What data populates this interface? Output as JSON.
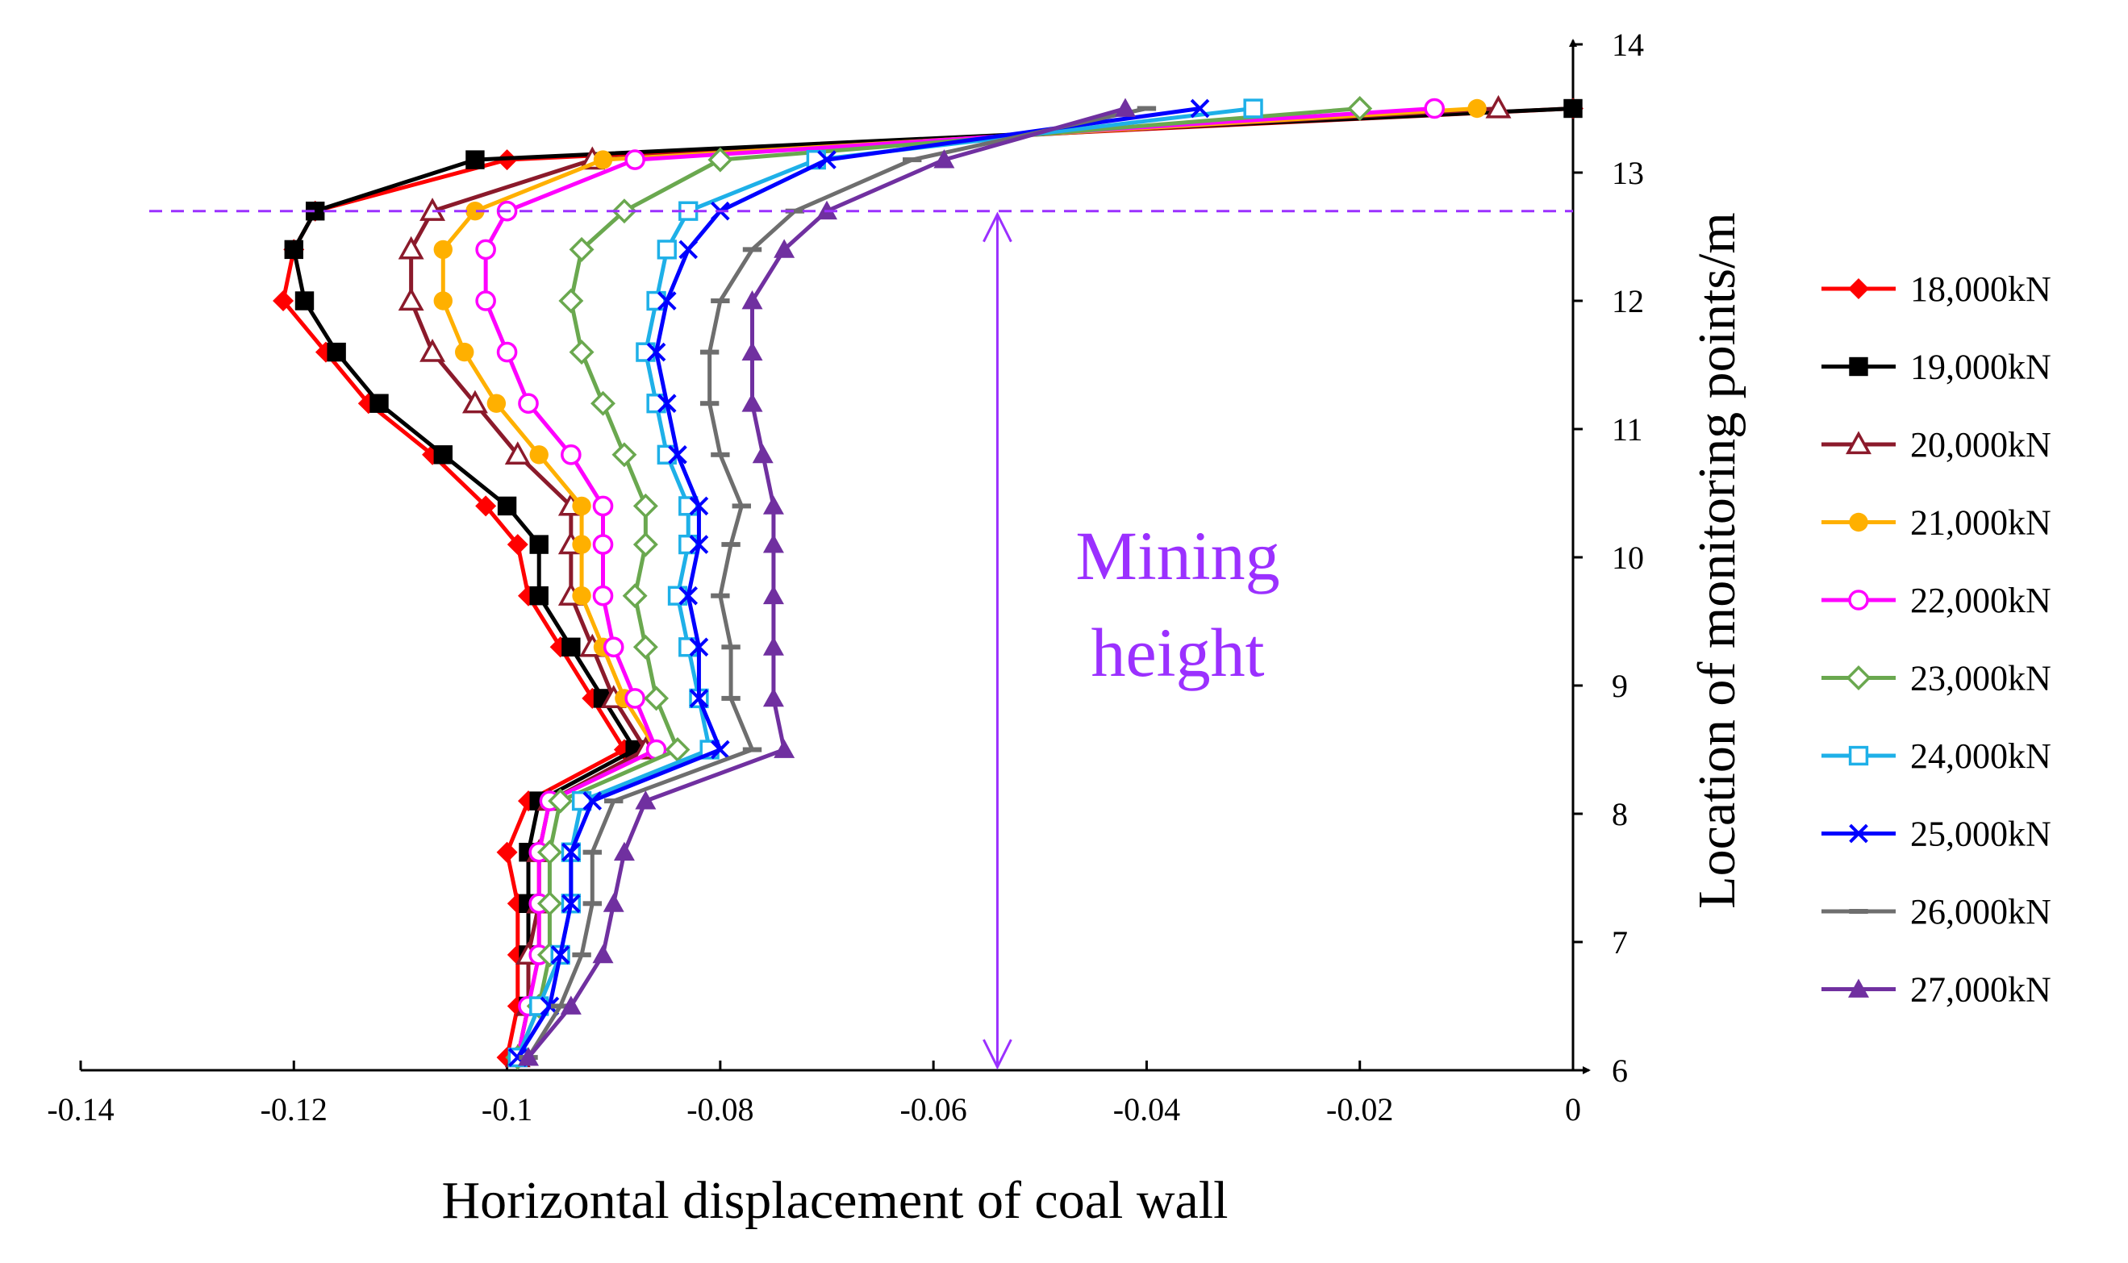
{
  "chart_data": {
    "type": "line",
    "title": "",
    "xlabel": "Horizontal displacement of coal wall",
    "ylabel": "Location of monitoring points/m",
    "xlim": [
      -0.14,
      0
    ],
    "ylim": [
      6,
      14
    ],
    "xticks": [
      "-0.14",
      "-0.12",
      "-0.1",
      "-0.08",
      "-0.06",
      "-0.04",
      "-0.02",
      "0"
    ],
    "yticks": [
      "6",
      "7",
      "8",
      "9",
      "10",
      "11",
      "12",
      "13",
      "14"
    ],
    "grid": false,
    "legend_position": "right",
    "y": [
      6.1,
      6.5,
      6.9,
      7.3,
      7.7,
      8.1,
      8.5,
      8.9,
      9.3,
      9.7,
      10.1,
      10.4,
      10.8,
      11.2,
      11.6,
      12.0,
      12.4,
      12.7,
      13.1,
      13.5
    ],
    "series": [
      {
        "name": "18,000kN",
        "color": "#FF0000",
        "marker": "diamond",
        "x": [
          -0.1,
          -0.099,
          -0.099,
          -0.099,
          -0.1,
          -0.098,
          -0.089,
          -0.092,
          -0.095,
          -0.098,
          -0.099,
          -0.102,
          -0.107,
          -0.113,
          -0.117,
          -0.121,
          -0.12,
          -0.118,
          -0.1,
          0.0
        ]
      },
      {
        "name": "19,000kN",
        "color": "#000000",
        "marker": "square",
        "x": [
          -0.099,
          -0.098,
          -0.098,
          -0.098,
          -0.098,
          -0.097,
          -0.088,
          -0.091,
          -0.094,
          -0.097,
          -0.097,
          -0.1,
          -0.106,
          -0.112,
          -0.116,
          -0.119,
          -0.12,
          -0.118,
          -0.103,
          0.0
        ]
      },
      {
        "name": "20,000kN",
        "color": "#8B1A2B",
        "marker": "triangle-open",
        "x": [
          -0.099,
          -0.098,
          -0.098,
          -0.097,
          -0.097,
          -0.096,
          -0.087,
          -0.09,
          -0.092,
          -0.094,
          -0.094,
          -0.094,
          -0.099,
          -0.103,
          -0.107,
          -0.109,
          -0.109,
          -0.107,
          -0.092,
          -0.007
        ]
      },
      {
        "name": "21,000kN",
        "color": "#FFB000",
        "marker": "circle",
        "x": [
          -0.099,
          -0.098,
          -0.097,
          -0.097,
          -0.097,
          -0.096,
          -0.086,
          -0.089,
          -0.091,
          -0.093,
          -0.093,
          -0.093,
          -0.097,
          -0.101,
          -0.104,
          -0.106,
          -0.106,
          -0.103,
          -0.091,
          -0.009
        ]
      },
      {
        "name": "22,000kN",
        "color": "#FF00FF",
        "marker": "circle-open",
        "x": [
          -0.099,
          -0.098,
          -0.097,
          -0.097,
          -0.097,
          -0.096,
          -0.086,
          -0.088,
          -0.09,
          -0.091,
          -0.091,
          -0.091,
          -0.094,
          -0.098,
          -0.1,
          -0.102,
          -0.102,
          -0.1,
          -0.088,
          -0.013
        ]
      },
      {
        "name": "23,000kN",
        "color": "#6AA84F",
        "marker": "diamond-open",
        "x": [
          -0.099,
          -0.097,
          -0.096,
          -0.096,
          -0.096,
          -0.095,
          -0.084,
          -0.086,
          -0.087,
          -0.088,
          -0.087,
          -0.087,
          -0.089,
          -0.091,
          -0.093,
          -0.094,
          -0.093,
          -0.089,
          -0.08,
          -0.02
        ]
      },
      {
        "name": "24,000kN",
        "color": "#1EB0E8",
        "marker": "square-open",
        "x": [
          -0.099,
          -0.097,
          -0.095,
          -0.094,
          -0.094,
          -0.093,
          -0.081,
          -0.082,
          -0.083,
          -0.084,
          -0.083,
          -0.083,
          -0.085,
          -0.086,
          -0.087,
          -0.086,
          -0.085,
          -0.083,
          -0.071,
          -0.03
        ]
      },
      {
        "name": "25,000kN",
        "color": "#0000FF",
        "marker": "x",
        "x": [
          -0.099,
          -0.096,
          -0.095,
          -0.094,
          -0.094,
          -0.092,
          -0.08,
          -0.082,
          -0.082,
          -0.083,
          -0.082,
          -0.082,
          -0.084,
          -0.085,
          -0.086,
          -0.085,
          -0.083,
          -0.08,
          -0.07,
          -0.035
        ]
      },
      {
        "name": "26,000kN",
        "color": "#6E6E6E",
        "marker": "dash",
        "x": [
          -0.098,
          -0.095,
          -0.093,
          -0.092,
          -0.092,
          -0.09,
          -0.077,
          -0.079,
          -0.079,
          -0.08,
          -0.079,
          -0.078,
          -0.08,
          -0.081,
          -0.081,
          -0.08,
          -0.077,
          -0.073,
          -0.062,
          -0.04
        ]
      },
      {
        "name": "27,000kN",
        "color": "#7030A0",
        "marker": "triangle",
        "x": [
          -0.098,
          -0.094,
          -0.091,
          -0.09,
          -0.089,
          -0.087,
          -0.074,
          -0.075,
          -0.075,
          -0.075,
          -0.075,
          -0.075,
          -0.076,
          -0.077,
          -0.077,
          -0.077,
          -0.074,
          -0.07,
          -0.059,
          -0.042
        ]
      }
    ],
    "annotation": {
      "text_line1": "Mining",
      "text_line2": "height",
      "y_top": 12.7,
      "y_bottom": 6,
      "x": -0.054,
      "color": "#9B30FF"
    }
  }
}
